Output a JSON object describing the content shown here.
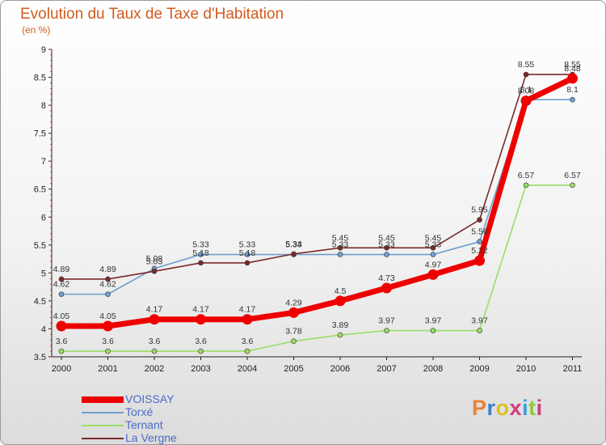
{
  "chart_data": {
    "type": "line",
    "title": "Evolution du Taux de Taxe d'Habitation",
    "subtitle": "(en %)",
    "x": [
      "2000",
      "2001",
      "2002",
      "2003",
      "2004",
      "2005",
      "2006",
      "2007",
      "2008",
      "2009",
      "2010",
      "2011"
    ],
    "ylim": [
      3.5,
      9
    ],
    "yticks": [
      "3.5",
      "4",
      "4.5",
      "5",
      "5.5",
      "6",
      "6.5",
      "7",
      "7.5",
      "8",
      "8.5",
      "9"
    ],
    "grid": false,
    "legend_position": "bottom-left",
    "series": [
      {
        "name": "VOISSAY",
        "color": "#ee0000",
        "values": [
          4.05,
          4.05,
          4.17,
          4.17,
          4.17,
          4.29,
          4.5,
          4.73,
          4.97,
          5.22,
          8.08,
          8.48
        ],
        "labels": [
          "4.05",
          "4.05",
          "4.17",
          "4.17",
          "4.17",
          "4.29",
          "4.5",
          "4.73",
          "4.97",
          "5.22",
          "8.08",
          "8.48"
        ]
      },
      {
        "name": "Torxé",
        "color": "#6f9fd0",
        "values": [
          4.62,
          4.62,
          5.08,
          5.33,
          5.33,
          5.33,
          5.33,
          5.33,
          5.33,
          5.56,
          8.1,
          8.1
        ],
        "labels": [
          "4.62",
          "4.62",
          "5.08",
          "5.33",
          "5.33",
          "5.33",
          "5.33",
          "5.33",
          "5.33",
          "5.56",
          "8.1",
          "8.1"
        ]
      },
      {
        "name": "Ternant",
        "color": "#99dd66",
        "values": [
          3.6,
          3.6,
          3.6,
          3.6,
          3.6,
          3.78,
          3.89,
          3.97,
          3.97,
          3.97,
          6.57,
          6.57
        ],
        "labels": [
          "3.6",
          "3.6",
          "3.6",
          "3.6",
          "3.6",
          "3.78",
          "3.89",
          "3.97",
          "3.97",
          "3.97",
          "6.57",
          "6.57"
        ]
      },
      {
        "name": "La Vergne",
        "color": "#7a2a2a",
        "values": [
          4.89,
          4.89,
          5.03,
          5.18,
          5.18,
          5.34,
          5.45,
          5.45,
          5.45,
          5.95,
          8.55,
          8.55
        ],
        "labels": [
          "4.89",
          "4.89",
          "5.03",
          "5.18",
          "5.18",
          "5.34",
          "5.45",
          "5.45",
          "5.45",
          "5.95",
          "8.55",
          "8.55"
        ]
      }
    ]
  },
  "logo": {
    "text": "Proxiti",
    "colors": [
      "#e8833a",
      "#3f7fc9",
      "#e0c020",
      "#d03c7c",
      "#3f9fd9",
      "#8fc93c",
      "#c63f7c"
    ]
  }
}
